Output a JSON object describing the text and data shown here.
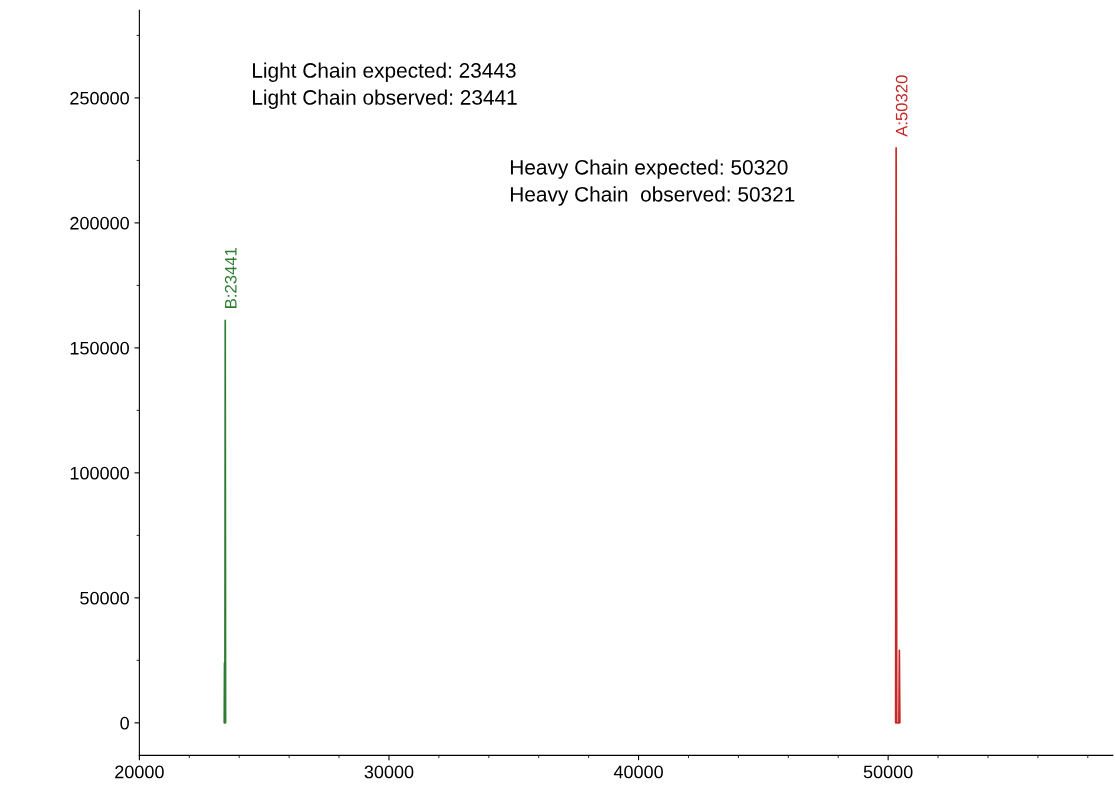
{
  "chart_data": {
    "type": "line",
    "series": [
      {
        "color": "#2e7d32",
        "x": [
          23400,
          23410,
          23425,
          23441,
          23455
        ],
        "values": [
          0,
          24000,
          0,
          161000,
          0
        ]
      },
      {
        "color": "#c62828",
        "x": [
          50300,
          50320,
          50345,
          50430,
          50450,
          50470
        ],
        "values": [
          0,
          230000,
          0,
          0,
          29000,
          0
        ]
      }
    ],
    "annotations": [
      "Light Chain expected: 23443\nLight Chain observed: 23441",
      "Heavy Chain expected: 50320\nHeavy Chain  observed: 50321",
      {
        "text": "B:23441",
        "x": 23441,
        "y": 161000
      },
      {
        "text": "A:50320",
        "x": 50320,
        "y": 230000
      }
    ],
    "xlim": [
      20000,
      59000
    ],
    "ylim": [
      -13000,
      285000
    ],
    "xticks": [
      20000,
      30000,
      40000,
      50000
    ],
    "yticks": [
      0,
      50000,
      100000,
      150000,
      200000,
      250000
    ],
    "grid": false,
    "marker": "none",
    "line_style": "solid"
  }
}
